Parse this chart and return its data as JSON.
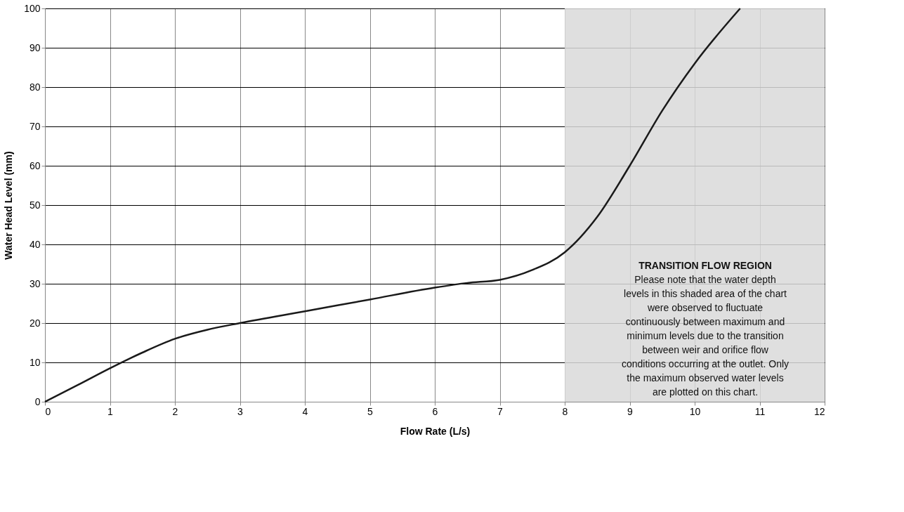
{
  "chart_data": {
    "type": "line",
    "xlabel": "Flow Rate (L/s)",
    "ylabel": "Water Head Level (mm)",
    "x": [
      0,
      0.5,
      1,
      1.5,
      2,
      2.5,
      3,
      4,
      5,
      6,
      6.5,
      7,
      7.5,
      8,
      8.5,
      9,
      9.5,
      10,
      10.7
    ],
    "series": [
      {
        "color": "#1a1a1a",
        "values": [
          0,
          4.2,
          8.5,
          12.5,
          16,
          18.3,
          20,
          23,
          26,
          29,
          30.2,
          31,
          33.5,
          38,
          47,
          60,
          74,
          86,
          100
        ]
      }
    ],
    "xlim": [
      0,
      12
    ],
    "xticks": [
      0,
      1,
      2,
      3,
      4,
      5,
      6,
      7,
      8,
      9,
      10,
      11,
      12
    ],
    "ylim": [
      0,
      100
    ],
    "yticks": [
      0,
      10,
      20,
      30,
      40,
      50,
      60,
      70,
      80,
      90,
      100
    ],
    "grid": true,
    "marker": "none",
    "line_style": "solid",
    "bands": [
      {
        "axis": "x",
        "from": 8,
        "to": 12,
        "label": "TRANSITION FLOW REGION",
        "color": "#d9d9d9"
      }
    ],
    "annotations": [
      "Please note that the water depth\nlevels in this shaded area of the chart\nwere observed to fluctuate\ncontinuously between maximum and\nminimum levels due to the transition\nbetween weir and orifice flow\nconditions occurring at the outlet. Only\nthe maximum observed  water levels\nare plotted on this chart."
    ]
  }
}
